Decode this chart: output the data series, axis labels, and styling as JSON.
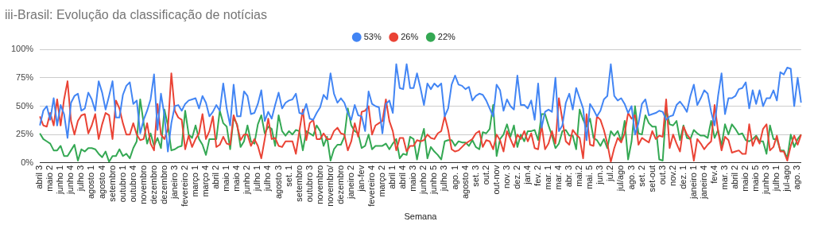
{
  "chart_data": {
    "type": "line",
    "title": "iii-Brasil: Evolução da classificação de notícias",
    "xlabel": "Semana",
    "categories": [
      "abril 3",
      null,
      null,
      "maio 2",
      null,
      null,
      "junho 1",
      null,
      null,
      "junho 4",
      null,
      null,
      "julho 3",
      null,
      null,
      "agosto 1",
      null,
      null,
      "agosto 4",
      null,
      null,
      "setembro",
      null,
      null,
      "outubro 1",
      null,
      null,
      "outubro 4",
      null,
      null,
      "novembro",
      null,
      null,
      "dezembro",
      null,
      null,
      "dezembro",
      null,
      null,
      "janeiro 3",
      null,
      null,
      "fevereiro 2",
      null,
      null,
      "março 1",
      null,
      null,
      "março 4",
      null,
      null,
      "abril 2",
      null,
      null,
      "maio 1",
      null,
      null,
      "maio 4",
      null,
      null,
      "junho 2",
      null,
      null,
      "julho 1",
      null,
      null,
      "julho 4",
      null,
      null,
      "agosto 3",
      null,
      null,
      "set. 1",
      null,
      null,
      "setembro",
      null,
      null,
      "outubro 3",
      null,
      null,
      "novembro",
      null,
      null,
      "novembro/",
      null,
      null,
      "dezembro",
      null,
      null,
      "janeiro 2",
      null,
      null,
      "jan-fev",
      null,
      null,
      "fevereiro 4",
      null,
      null,
      "março 2",
      null,
      null,
      "abril 1",
      null,
      null,
      "abril 4",
      null,
      null,
      "maio 3",
      null,
      null,
      "junho 2",
      null,
      null,
      "junho 5",
      null,
      null,
      "julho 3",
      null,
      null,
      "ago. 1",
      null,
      null,
      "agosto 4",
      null,
      null,
      "set. 3",
      null,
      null,
      "out.2",
      null,
      null,
      "out-nov",
      null,
      null,
      "nov. 3",
      null,
      null,
      "dez. 2",
      null,
      null,
      "jan.4",
      null,
      null,
      "fev. 2",
      null,
      null,
      "mar. 1",
      null,
      null,
      "mar. 4",
      null,
      null,
      "abr. 3",
      null,
      null,
      "mai.2",
      null,
      null,
      "mai. 5",
      null,
      null,
      "jun.3",
      null,
      null,
      "jul.2",
      null,
      null,
      "jul/ago",
      null,
      null,
      "ago. 3",
      null,
      null,
      "set. 2",
      null,
      null,
      "set-out",
      null,
      null,
      "out.3",
      null,
      null,
      "nov.2",
      null,
      null,
      "dez. 1",
      null,
      null,
      "janeiro 1",
      null,
      null,
      "janeiro 4",
      null,
      null,
      "fev.4",
      null,
      null,
      "mar. 3",
      null,
      null,
      "abril 2",
      null,
      null,
      "maio 2",
      null,
      null,
      "maio 5",
      null,
      null,
      "junho 3",
      null,
      null,
      "julho 1",
      null,
      null,
      "jul-ago",
      null,
      null,
      "ago. 3",
      null
    ],
    "series": [
      {
        "name": "53%",
        "color": "#4285f4",
        "values": [
          33,
          46,
          50,
          38,
          57,
          33,
          51,
          43,
          22,
          53,
          59,
          61,
          46,
          48,
          62,
          56,
          46,
          72,
          62,
          47,
          59,
          72,
          40,
          40,
          60,
          68,
          71,
          52,
          55,
          26,
          38,
          46,
          56,
          78,
          29,
          61,
          42,
          10,
          35,
          50,
          51,
          46,
          52,
          55,
          56,
          57,
          48,
          59,
          53,
          41,
          45,
          51,
          46,
          70,
          48,
          33,
          69,
          41,
          41,
          63,
          59,
          43,
          44,
          52,
          64,
          37,
          45,
          39,
          51,
          62,
          48,
          53,
          55,
          56,
          61,
          44,
          43,
          52,
          39,
          38,
          44,
          49,
          60,
          56,
          79,
          61,
          53,
          57,
          53,
          44,
          38,
          51,
          42,
          41,
          28,
          63,
          52,
          50,
          49,
          26,
          52,
          55,
          44,
          87,
          66,
          65,
          87,
          66,
          66,
          79,
          66,
          51,
          70,
          65,
          70,
          67,
          70,
          41,
          48,
          69,
          77,
          69,
          68,
          65,
          67,
          55,
          59,
          61,
          60,
          55,
          48,
          41,
          69,
          64,
          46,
          56,
          50,
          47,
          77,
          51,
          51,
          48,
          55,
          38,
          70,
          31,
          45,
          47,
          45,
          75,
          28,
          33,
          53,
          61,
          47,
          66,
          57,
          48,
          20,
          52,
          47,
          41,
          46,
          56,
          59,
          87,
          59,
          55,
          57,
          52,
          44,
          50,
          25,
          35,
          52,
          56,
          42,
          43,
          44,
          46,
          45,
          38,
          41,
          42,
          51,
          54,
          50,
          45,
          59,
          69,
          51,
          57,
          64,
          61,
          45,
          33,
          59,
          79,
          43,
          57,
          57,
          59,
          65,
          66,
          71,
          48,
          64,
          52,
          64,
          50,
          57,
          57,
          64,
          55,
          80,
          78,
          84,
          83,
          50,
          75,
          53
        ]
      },
      {
        "name": "26%",
        "color": "#ea4335",
        "values": [
          41,
          33,
          32,
          44,
          33,
          56,
          33,
          56,
          72,
          37,
          25,
          37,
          42,
          43,
          26,
          33,
          43,
          21,
          34,
          44,
          42,
          21,
          55,
          48,
          35,
          25,
          25,
          35,
          25,
          20,
          21,
          35,
          17,
          11,
          52,
          25,
          21,
          30,
          79,
          46,
          40,
          38,
          12,
          24,
          14,
          21,
          26,
          43,
          21,
          28,
          41,
          14,
          16,
          23,
          17,
          16,
          42,
          33,
          20,
          25,
          25,
          15,
          21,
          15,
          4,
          21,
          39,
          21,
          22,
          15,
          14,
          19,
          19,
          19,
          8,
          28,
          47,
          20,
          35,
          38,
          21,
          21,
          26,
          21,
          21,
          28,
          31,
          26,
          25,
          11,
          19,
          35,
          23,
          45,
          46,
          50,
          25,
          33,
          35,
          37,
          56,
          37,
          28,
          11,
          22,
          22,
          10,
          15,
          15,
          20,
          19,
          20,
          25,
          22,
          21,
          26,
          28,
          41,
          29,
          12,
          10,
          11,
          14,
          17,
          19,
          21,
          26,
          28,
          14,
          20,
          19,
          12,
          25,
          20,
          10,
          28,
          21,
          14,
          25,
          21,
          28,
          19,
          26,
          13,
          12,
          33,
          12,
          17,
          28,
          17,
          57,
          38,
          19,
          16,
          29,
          25,
          22,
          4,
          43,
          16,
          15,
          41,
          38,
          29,
          17,
          1,
          13,
          22,
          18,
          26,
          44,
          39,
          42,
          16,
          22,
          20,
          18,
          28,
          21,
          24,
          23,
          56,
          13,
          25,
          17,
          10,
          32,
          25,
          21,
          2,
          21,
          17,
          12,
          16,
          19,
          51,
          28,
          11,
          23,
          20,
          9,
          10,
          11,
          8,
          8,
          34,
          15,
          23,
          17,
          30,
          34,
          11,
          14,
          24,
          10,
          10,
          2,
          15,
          24,
          16,
          25
        ]
      },
      {
        "name": "22%",
        "color": "#34a853",
        "values": [
          26,
          21,
          19,
          17,
          11,
          11,
          15,
          6,
          6,
          11,
          16,
          2,
          12,
          10,
          13,
          13,
          12,
          8,
          5,
          10,
          1,
          6,
          6,
          12,
          6,
          8,
          4,
          13,
          19,
          56,
          35,
          17,
          26,
          15,
          22,
          13,
          47,
          33,
          11,
          12,
          14,
          15,
          46,
          25,
          22,
          33,
          21,
          16,
          7,
          21,
          21,
          21,
          46,
          35,
          32,
          12,
          40,
          34,
          14,
          19,
          33,
          19,
          17,
          34,
          42,
          26,
          32,
          30,
          15,
          42,
          28,
          24,
          28,
          25,
          29,
          28,
          11,
          28,
          26,
          24,
          33,
          28,
          15,
          23,
          2,
          12,
          16,
          16,
          23,
          48,
          33,
          28,
          26,
          13,
          15,
          25,
          12,
          15,
          15,
          15,
          17,
          12,
          17,
          21,
          4,
          8,
          7,
          23,
          21,
          3,
          19,
          30,
          4,
          14,
          10,
          7,
          3,
          19,
          20,
          20,
          15,
          19,
          18,
          18,
          15,
          20,
          14,
          12,
          27,
          26,
          30,
          51,
          6,
          21,
          25,
          34,
          23,
          33,
          14,
          25,
          19,
          28,
          28,
          29,
          20,
          43,
          43,
          33,
          24,
          13,
          17,
          28,
          29,
          24,
          24,
          12,
          47,
          38,
          32,
          39,
          22,
          20,
          15,
          21,
          13,
          28,
          24,
          28,
          19,
          37,
          3,
          19,
          50,
          26,
          25,
          42,
          35,
          32,
          32,
          3,
          2,
          47,
          34,
          33,
          37,
          20,
          33,
          22,
          21,
          29,
          26,
          24,
          24,
          22,
          37,
          22,
          29,
          15,
          34,
          25,
          34,
          30,
          25,
          26,
          20,
          19,
          21,
          24,
          19,
          19,
          8,
          33,
          21,
          21,
          11,
          11,
          4,
          25,
          14,
          21,
          25
        ]
      }
    ],
    "ylim": [
      0,
      100
    ],
    "yticks": [
      {
        "value": 0,
        "label": "0%"
      },
      {
        "value": 25,
        "label": "25%"
      },
      {
        "value": 50,
        "label": "50%"
      },
      {
        "value": 75,
        "label": "75%"
      },
      {
        "value": 100,
        "label": "100%"
      }
    ],
    "grid": "y",
    "legend": "top",
    "marker": "none",
    "line_style": "solid"
  }
}
